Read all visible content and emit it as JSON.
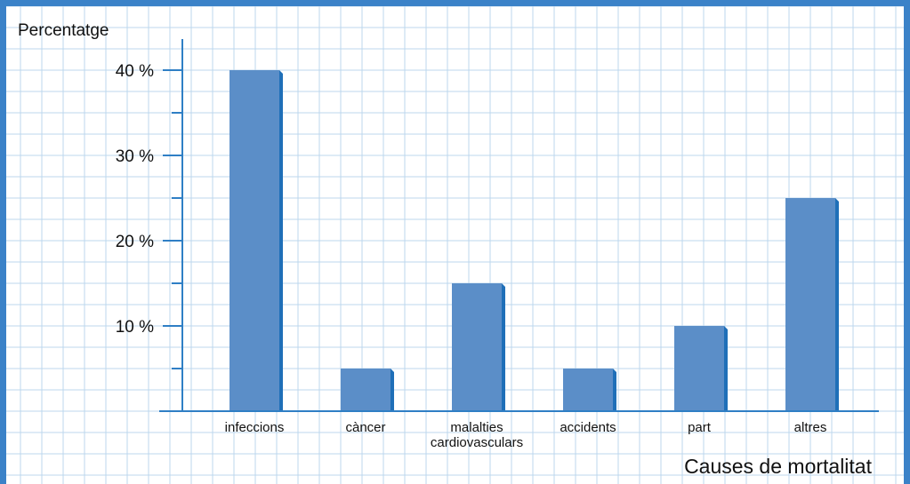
{
  "chart_data": {
    "type": "bar",
    "title": "",
    "ylabel": "Percentatge",
    "xlabel": "Causes de mortalitat",
    "categories": [
      [
        "infeccions"
      ],
      [
        "càncer"
      ],
      [
        "malalties",
        "cardiovasculars"
      ],
      [
        "accidents"
      ],
      [
        "part"
      ],
      [
        "altres"
      ]
    ],
    "values": [
      40,
      5,
      15,
      5,
      10,
      25
    ],
    "ylim": [
      0,
      42.5
    ],
    "y_ticks": [
      {
        "value": 10,
        "label": "10 %"
      },
      {
        "value": 20,
        "label": "20 %"
      },
      {
        "value": 30,
        "label": "30 %"
      },
      {
        "value": 40,
        "label": "40 %"
      }
    ],
    "y_minor_ticks": [
      5,
      15,
      25,
      35
    ],
    "grid": true,
    "legend": "none",
    "colors": {
      "bar_front": "#5b8ec8",
      "bar_side": "#1f6fb8",
      "axis": "#2f7fc5",
      "grid": "#bcd7ee",
      "frame": "#3b82c8"
    }
  }
}
